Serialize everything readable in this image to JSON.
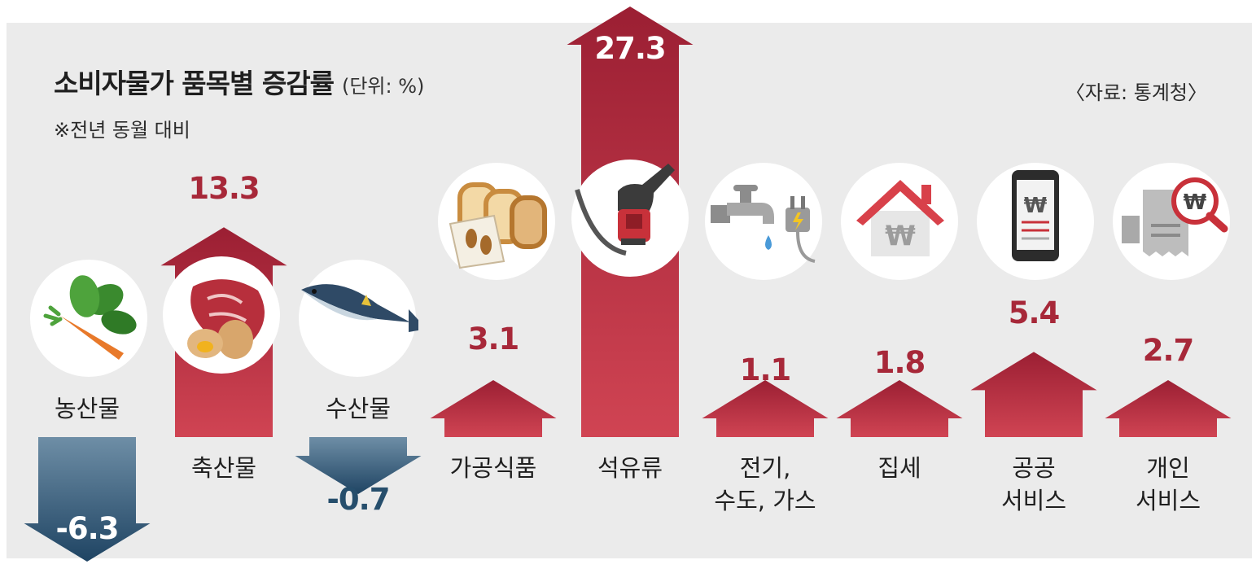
{
  "header": {
    "title": "소비자물가 품목별 증감률",
    "unit": "(단위: %)",
    "note": "※전년 동월 대비",
    "source": "〈자료: 통계청〉"
  },
  "colors": {
    "positive": "#a72839",
    "negative": "#264e6c",
    "panel": "#ebebeb"
  },
  "chart_data": {
    "type": "bar",
    "title": "소비자물가 품목별 증감률",
    "unit": "%",
    "categories": [
      "농산물",
      "축산물",
      "수산물",
      "가공식품",
      "석유류",
      "전기, 수도, 가스",
      "집세",
      "공공 서비스",
      "개인 서비스"
    ],
    "values": [
      -6.3,
      13.3,
      -0.7,
      3.1,
      27.3,
      1.1,
      1.8,
      5.4,
      2.7
    ],
    "value_labels": [
      "-6.3",
      "13.3",
      "-0.7",
      "3.1",
      "27.3",
      "1.1",
      "1.8",
      "5.4",
      "2.7"
    ],
    "icons": [
      "vegetable-icon",
      "meat-egg-icon",
      "fish-icon",
      "bread-icon",
      "fuel-nozzle-icon",
      "faucet-plug-icon",
      "house-won-icon",
      "phone-won-icon",
      "receipt-won-icon"
    ],
    "legend": "none",
    "grid": false
  },
  "labels": {
    "c0": "농산물",
    "c1": "축산물",
    "c2": "수산물",
    "c3": "가공식품",
    "c4": "석유류",
    "c5a": "전기,",
    "c5b": "수도, 가스",
    "c6": "집세",
    "c7a": "공공",
    "c7b": "서비스",
    "c8a": "개인",
    "c8b": "서비스"
  }
}
